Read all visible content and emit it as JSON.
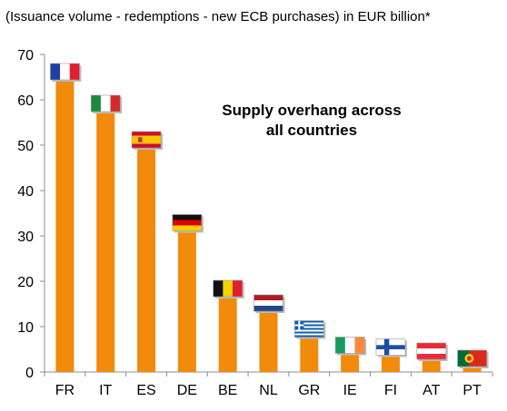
{
  "chart_data": {
    "type": "bar",
    "subtitle": "(Issuance volume - redemptions - new ECB purchases) in EUR billion*",
    "annotation_lines": [
      "Supply overhang across",
      "all countries"
    ],
    "categories": [
      "FR",
      "IT",
      "ES",
      "DE",
      "BE",
      "NL",
      "GR",
      "IE",
      "FI",
      "AT",
      "PT"
    ],
    "values": [
      64,
      57,
      49,
      30.7,
      16.2,
      13,
      7.3,
      3.7,
      3.3,
      2.4,
      0.8
    ],
    "ylim": [
      0,
      70
    ],
    "yticks": [
      0,
      10,
      20,
      30,
      40,
      50,
      60,
      70
    ],
    "bar_color": "#F28A0B",
    "grid": false,
    "legend": "none",
    "flag_icons": [
      "france-flag-icon",
      "italy-flag-icon",
      "spain-flag-icon",
      "germany-flag-icon",
      "belgium-flag-icon",
      "netherlands-flag-icon",
      "greece-flag-icon",
      "ireland-flag-icon",
      "finland-flag-icon",
      "austria-flag-icon",
      "portugal-flag-icon"
    ]
  }
}
